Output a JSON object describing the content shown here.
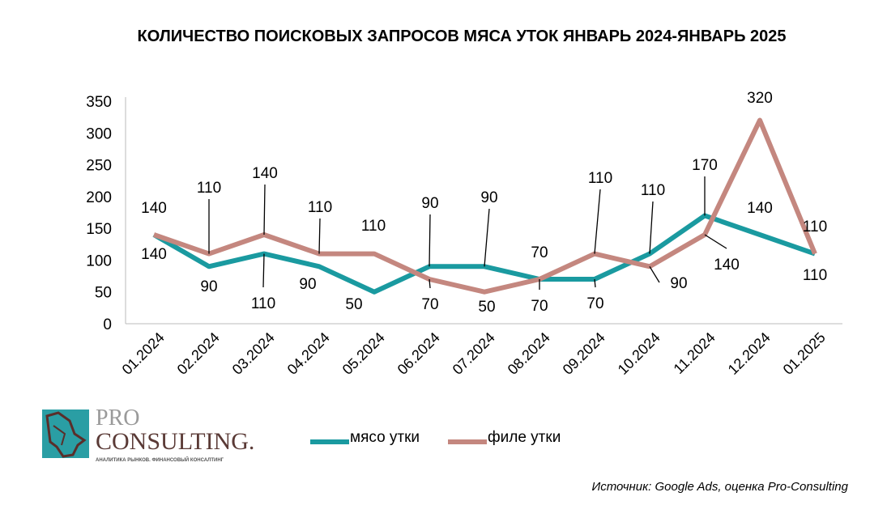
{
  "chart_data": {
    "type": "line",
    "title": "КОЛИЧЕСТВО ПОИСКОВЫХ ЗАПРОСОВ МЯСА УТОК ЯНВАРЬ 2024-ЯНВАРЬ 2025",
    "categories": [
      "01.2024",
      "02.2024",
      "03.2024",
      "04.2024",
      "05.2024",
      "06.2024",
      "07.2024",
      "08.2024",
      "09.2024",
      "10.2024",
      "11.2024",
      "12.2024",
      "01.2025"
    ],
    "series": [
      {
        "name": "мясо утки",
        "color": "#1a9aa0",
        "values": [
          140,
          90,
          110,
          90,
          50,
          90,
          90,
          70,
          70,
          110,
          170,
          140,
          110
        ]
      },
      {
        "name": "филе утки",
        "color": "#c4877f",
        "values": [
          140,
          110,
          140,
          110,
          110,
          70,
          50,
          70,
          110,
          90,
          140,
          320,
          110
        ]
      }
    ],
    "ylim": [
      0,
      350
    ],
    "yticks": [
      0,
      50,
      100,
      150,
      200,
      250,
      300,
      350
    ],
    "grid": false,
    "legend": "bottom",
    "data_labels": true
  },
  "source": "Источник: Google Ads, оценка Pro-Consulting",
  "logo": {
    "line1": "PRO",
    "line2": "CONSULTING.",
    "tagline": "АНАЛИТИКА РЫНКОВ. ФИНАНСОВЫЙ КОНСАЛТИНГ"
  }
}
